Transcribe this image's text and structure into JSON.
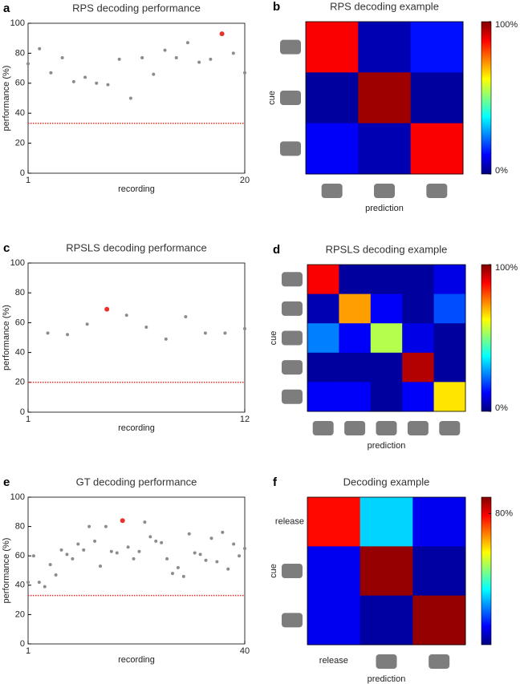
{
  "chart_data": [
    {
      "panel": "a",
      "type": "scatter",
      "title": "RPS decoding performance",
      "x_label": "recording",
      "y_label": "performance (%)",
      "x": [
        1,
        2,
        3,
        4,
        5,
        6,
        7,
        8,
        9,
        10,
        11,
        12,
        13,
        14,
        15,
        16,
        17,
        18,
        19,
        20
      ],
      "y": [
        73,
        83,
        67,
        77,
        61,
        64,
        60,
        59,
        76,
        50,
        77,
        66,
        82,
        77,
        87,
        74,
        76,
        93,
        80,
        67
      ],
      "colors": [
        "#8c8c8c",
        "#8c8c8c",
        "#8c8c8c",
        "#8c8c8c",
        "#8c8c8c",
        "#8c8c8c",
        "#8c8c8c",
        "#8c8c8c",
        "#8c8c8c",
        "#8c8c8c",
        "#8c8c8c",
        "#8c8c8c",
        "#8c8c8c",
        "#8c8c8c",
        "#8c8c8c",
        "#8c8c8c",
        "#8c8c8c",
        "#e8322c",
        "#8c8c8c",
        "#8c8c8c"
      ],
      "reference_line": {
        "value": 33.3,
        "color": "#e8322c",
        "style": "dotted"
      },
      "xlim": [
        1,
        20
      ],
      "xticks": [
        1,
        20
      ],
      "ylim": [
        0,
        100
      ],
      "yticks": [
        0,
        20,
        40,
        60,
        80,
        100
      ]
    },
    {
      "panel": "b",
      "type": "heatmap",
      "title": "RPS decoding example",
      "x_label": "prediction",
      "y_label": "cue",
      "x_categories": [
        null,
        null,
        null
      ],
      "y_categories": [
        null,
        null,
        null
      ],
      "values": [
        [
          88,
          5,
          14
        ],
        [
          3,
          97,
          3
        ],
        [
          12,
          5,
          88
        ]
      ],
      "colormap": "jet",
      "clim": [
        0,
        100
      ],
      "colorbar_ticks": [
        {
          "value": 100,
          "label": "100%"
        },
        {
          "value": 0,
          "label": "0%"
        }
      ]
    },
    {
      "panel": "c",
      "type": "scatter",
      "title": "RPSLS decoding performance",
      "x_label": "recording",
      "y_label": "performance (%)",
      "x": [
        2,
        3,
        4,
        5,
        6,
        7,
        8,
        9,
        10,
        11,
        12
      ],
      "y": [
        53,
        52,
        59,
        69,
        65,
        57,
        49,
        64,
        53,
        53,
        56
      ],
      "colors": [
        "#8c8c8c",
        "#8c8c8c",
        "#8c8c8c",
        "#e8322c",
        "#8c8c8c",
        "#8c8c8c",
        "#8c8c8c",
        "#8c8c8c",
        "#8c8c8c",
        "#8c8c8c",
        "#8c8c8c"
      ],
      "reference_line": {
        "value": 20,
        "color": "#e8322c",
        "style": "dotted"
      },
      "xlim": [
        1,
        12
      ],
      "xticks": [
        1,
        12
      ],
      "ylim": [
        0,
        100
      ],
      "yticks": [
        0,
        20,
        40,
        60,
        80,
        100
      ]
    },
    {
      "panel": "d",
      "type": "heatmap",
      "title": "RPSLS decoding example",
      "x_label": "prediction",
      "y_label": "cue",
      "x_categories": [
        null,
        null,
        null,
        null,
        null
      ],
      "y_categories": [
        null,
        null,
        null,
        null,
        null
      ],
      "values": [
        [
          88,
          3,
          3,
          3,
          10
        ],
        [
          5,
          72,
          12,
          3,
          20
        ],
        [
          25,
          12,
          55,
          10,
          3
        ],
        [
          3,
          3,
          3,
          95,
          3
        ],
        [
          12,
          12,
          3,
          12,
          65
        ]
      ],
      "colormap": "jet",
      "clim": [
        0,
        100
      ],
      "colorbar_ticks": [
        {
          "value": 100,
          "label": "100%"
        },
        {
          "value": 0,
          "label": "0%"
        }
      ]
    },
    {
      "panel": "e",
      "type": "scatter",
      "title": "GT decoding performance",
      "x_label": "recording",
      "y_label": "performance (%)",
      "x": [
        1,
        2,
        3,
        4,
        5,
        6,
        7,
        8,
        9,
        10,
        11,
        12,
        13,
        14,
        15,
        16,
        17,
        18,
        19,
        20,
        21,
        22,
        23,
        24,
        25,
        26,
        27,
        28,
        29,
        30,
        31,
        32,
        33,
        34,
        35,
        36,
        37,
        38,
        39,
        40
      ],
      "y": [
        42,
        60,
        42,
        39,
        54,
        47,
        64,
        61,
        58,
        68,
        64,
        80,
        70,
        53,
        80,
        63,
        62,
        84,
        66,
        58,
        63,
        83,
        73,
        70,
        69,
        58,
        48,
        52,
        46,
        75,
        62,
        61,
        57,
        72,
        56,
        76,
        51,
        68,
        60,
        65
      ],
      "colors": [
        "#8c8c8c",
        "#8c8c8c",
        "#8c8c8c",
        "#8c8c8c",
        "#8c8c8c",
        "#8c8c8c",
        "#8c8c8c",
        "#8c8c8c",
        "#8c8c8c",
        "#8c8c8c",
        "#8c8c8c",
        "#8c8c8c",
        "#8c8c8c",
        "#8c8c8c",
        "#8c8c8c",
        "#8c8c8c",
        "#8c8c8c",
        "#e8322c",
        "#8c8c8c",
        "#8c8c8c",
        "#8c8c8c",
        "#8c8c8c",
        "#8c8c8c",
        "#8c8c8c",
        "#8c8c8c",
        "#8c8c8c",
        "#8c8c8c",
        "#8c8c8c",
        "#8c8c8c",
        "#8c8c8c",
        "#8c8c8c",
        "#8c8c8c",
        "#8c8c8c",
        "#8c8c8c",
        "#8c8c8c",
        "#8c8c8c",
        "#8c8c8c",
        "#8c8c8c",
        "#8c8c8c",
        "#8c8c8c"
      ],
      "reference_line": {
        "value": 33,
        "color": "#e8322c",
        "style": "dotted"
      },
      "xlim": [
        1,
        40
      ],
      "xticks": [
        1,
        40
      ],
      "ylim": [
        0,
        100
      ],
      "yticks": [
        0,
        20,
        40,
        60,
        80,
        100
      ]
    },
    {
      "panel": "f",
      "type": "heatmap",
      "title": "Decoding example",
      "x_label": "prediction",
      "y_label": "cue",
      "x_categories": [
        "release",
        null,
        null
      ],
      "y_categories": [
        "release",
        null,
        null
      ],
      "values": [
        [
          78,
          30,
          10
        ],
        [
          10,
          88,
          3
        ],
        [
          10,
          3,
          88
        ]
      ],
      "colormap": "jet",
      "clim": [
        0,
        90
      ],
      "colorbar_ticks": [
        {
          "value": 80,
          "label": "80%"
        }
      ]
    }
  ]
}
